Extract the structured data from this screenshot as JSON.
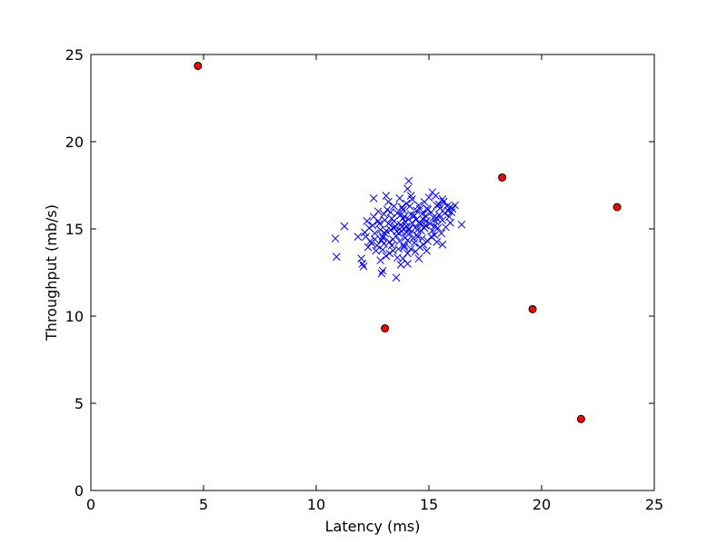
{
  "chart_data": {
    "type": "scatter",
    "title": "",
    "xlabel": "Latency (ms)",
    "ylabel": "Throughput (mb/s)",
    "xlim": [
      0,
      25
    ],
    "ylim": [
      0,
      25
    ],
    "x_ticks": [
      0,
      5,
      10,
      15,
      20,
      25
    ],
    "y_ticks": [
      0,
      5,
      10,
      15,
      20,
      25
    ],
    "grid": false,
    "legend": "none",
    "series": [
      {
        "marker": "x",
        "color": "#0000ff",
        "points": [
          [
            13.05,
            14.74
          ],
          [
            13.41,
            13.76
          ],
          [
            14.2,
            15.85
          ],
          [
            14.91,
            16.17
          ],
          [
            13.58,
            14.86
          ],
          [
            13.46,
            15.05
          ],
          [
            13.91,
            15.71
          ],
          [
            12.95,
            14.5
          ],
          [
            14.12,
            15.02
          ],
          [
            14.35,
            15.76
          ],
          [
            13.8,
            15.1
          ],
          [
            14.55,
            15.35
          ],
          [
            15.1,
            15.95
          ],
          [
            13.25,
            14.25
          ],
          [
            14.75,
            15.55
          ],
          [
            12.7,
            14.05
          ],
          [
            13.65,
            13.85
          ],
          [
            14.0,
            16.45
          ],
          [
            15.45,
            15.8
          ],
          [
            14.3,
            14.45
          ],
          [
            13.95,
            15.4
          ],
          [
            12.5,
            15.2
          ],
          [
            14.65,
            14.9
          ],
          [
            15.8,
            16.3
          ],
          [
            13.1,
            13.45
          ],
          [
            14.45,
            16.05
          ],
          [
            13.35,
            15.6
          ],
          [
            15.25,
            14.65
          ],
          [
            12.85,
            13.2
          ],
          [
            14.85,
            15.2
          ],
          [
            13.7,
            14.3
          ],
          [
            15.6,
            15.5
          ],
          [
            14.15,
            14.75
          ],
          [
            12.4,
            14.3
          ],
          [
            13.85,
            16.1
          ],
          [
            15.05,
            15.3
          ],
          [
            14.6,
            13.95
          ],
          [
            13.2,
            15.3
          ],
          [
            16.0,
            15.95
          ],
          [
            14.4,
            15.05
          ],
          [
            13.55,
            14.6
          ],
          [
            12.3,
            13.95
          ],
          [
            15.35,
            16.35
          ],
          [
            14.05,
            13.6
          ],
          [
            13.0,
            15.85
          ],
          [
            14.95,
            14.3
          ],
          [
            15.75,
            15.1
          ],
          [
            13.45,
            16.3
          ],
          [
            14.25,
            16.7
          ],
          [
            12.75,
            15.45
          ],
          [
            14.7,
            15.85
          ],
          [
            13.9,
            14.05
          ],
          [
            15.2,
            15.65
          ],
          [
            12.6,
            14.75
          ],
          [
            14.5,
            14.55
          ],
          [
            13.3,
            14.95
          ],
          [
            15.5,
            16.2
          ],
          [
            14.1,
            15.55
          ],
          [
            13.75,
            15.25
          ],
          [
            12.95,
            13.8
          ],
          [
            14.8,
            16.55
          ],
          [
            15.9,
            15.7
          ],
          [
            13.6,
            15.9
          ],
          [
            14.35,
            14.2
          ],
          [
            12.2,
            14.55
          ],
          [
            15.15,
            14.9
          ],
          [
            13.15,
            16.1
          ],
          [
            14.9,
            15.45
          ],
          [
            13.8,
            14.85
          ],
          [
            12.55,
            15.7
          ],
          [
            14.6,
            16.15
          ],
          [
            15.4,
            15.05
          ],
          [
            13.4,
            14.4
          ],
          [
            14.2,
            13.85
          ],
          [
            12.85,
            14.95
          ],
          [
            15.65,
            16.55
          ],
          [
            14.0,
            15.15
          ],
          [
            13.7,
            16.75
          ],
          [
            14.45,
            14.65
          ],
          [
            13.05,
            15.5
          ],
          [
            15.3,
            15.4
          ],
          [
            14.75,
            14.1
          ],
          [
            13.25,
            13.6
          ],
          [
            12.45,
            14.2
          ],
          [
            14.3,
            15.7
          ],
          [
            15.85,
            16.05
          ],
          [
            13.95,
            14.5
          ],
          [
            14.65,
            15.3
          ],
          [
            13.5,
            15.15
          ],
          [
            12.9,
            14.35
          ],
          [
            15.0,
            16.8
          ],
          [
            14.15,
            16.3
          ],
          [
            13.35,
            14.05
          ],
          [
            14.85,
            15.75
          ],
          [
            12.65,
            13.75
          ],
          [
            15.55,
            14.75
          ],
          [
            13.85,
            15.6
          ],
          [
            14.5,
            14.95
          ],
          [
            13.0,
            14.15
          ],
          [
            14.25,
            15.35
          ],
          [
            15.7,
            15.9
          ],
          [
            13.6,
            13.35
          ],
          [
            14.95,
            16.1
          ],
          [
            12.35,
            15.05
          ],
          [
            14.4,
            13.7
          ],
          [
            13.2,
            16.55
          ],
          [
            15.25,
            15.15
          ],
          [
            14.05,
            14.35
          ],
          [
            13.75,
            15.8
          ],
          [
            12.8,
            15.3
          ],
          [
            14.7,
            14.45
          ],
          [
            15.45,
            16.4
          ],
          [
            13.45,
            15.45
          ],
          [
            14.2,
            16.9
          ],
          [
            12.95,
            14.6
          ],
          [
            15.1,
            14.55
          ],
          [
            13.9,
            13.95
          ],
          [
            14.55,
            16.35
          ],
          [
            13.3,
            15.95
          ],
          [
            12.6,
            14.4
          ],
          [
            15.95,
            16.25
          ],
          [
            14.1,
            14.95
          ],
          [
            13.65,
            14.75
          ],
          [
            14.8,
            15.05
          ],
          [
            12.75,
            16.0
          ],
          [
            15.35,
            15.6
          ],
          [
            13.1,
            14.9
          ],
          [
            14.45,
            15.55
          ],
          [
            13.8,
            16.25
          ],
          [
            14.0,
            14.8
          ],
          [
            12.0,
            13.3
          ],
          [
            12.05,
            13.0
          ],
          [
            12.1,
            12.85
          ],
          [
            12.9,
            12.45
          ],
          [
            12.95,
            12.6
          ],
          [
            13.55,
            12.2
          ],
          [
            10.85,
            14.45
          ],
          [
            10.9,
            13.4
          ],
          [
            11.25,
            15.15
          ],
          [
            11.85,
            14.55
          ],
          [
            12.55,
            16.75
          ],
          [
            13.1,
            16.9
          ],
          [
            14.1,
            17.75
          ],
          [
            14.05,
            17.3
          ],
          [
            15.15,
            17.1
          ],
          [
            14.55,
            13.3
          ],
          [
            14.05,
            13.0
          ],
          [
            14.9,
            13.75
          ],
          [
            15.6,
            14.1
          ],
          [
            15.35,
            14.25
          ],
          [
            16.45,
            15.25
          ],
          [
            16.05,
            16.15
          ],
          [
            16.15,
            16.35
          ],
          [
            15.3,
            16.9
          ],
          [
            15.6,
            16.7
          ],
          [
            12.15,
            14.8
          ],
          [
            12.25,
            15.45
          ],
          [
            13.75,
            12.95
          ],
          [
            13.85,
            13.3
          ],
          [
            15.95,
            15.35
          ]
        ]
      },
      {
        "marker": "circle",
        "color": "#ff0000",
        "edge_color": "#000000",
        "points": [
          [
            4.75,
            24.35
          ],
          [
            18.25,
            17.95
          ],
          [
            23.35,
            16.25
          ],
          [
            13.05,
            9.3
          ],
          [
            19.6,
            10.4
          ],
          [
            21.75,
            4.1
          ]
        ]
      }
    ]
  }
}
